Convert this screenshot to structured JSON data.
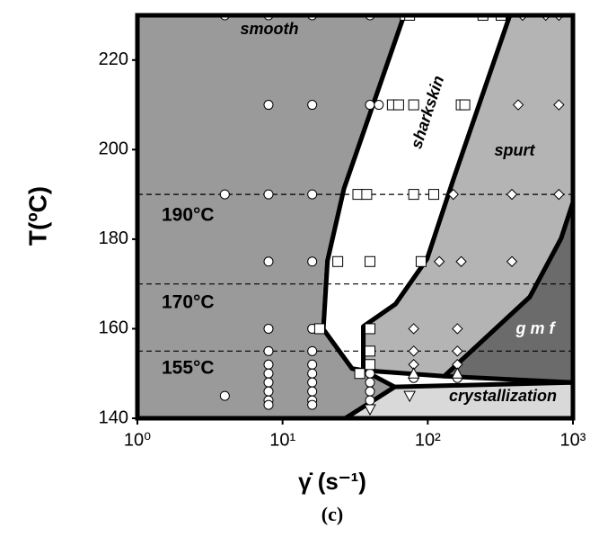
{
  "chart_data": {
    "type": "scatter",
    "x_label": "γ̇ (s⁻¹)",
    "y_label": "T(ºC)",
    "caption": "(c)",
    "xlim": [
      1,
      1000
    ],
    "log_x": true,
    "xticks": [
      {
        "value": 1,
        "label": "10⁰"
      },
      {
        "value": 10,
        "label": "10¹"
      },
      {
        "value": 100,
        "label": "10²"
      },
      {
        "value": 1000,
        "label": "10³"
      }
    ],
    "ylim": [
      140,
      230
    ],
    "yticks": [
      140,
      160,
      180,
      200,
      220
    ],
    "regions": [
      {
        "name": "smooth",
        "color": "#9a9a9a",
        "x": [
          1,
          68.7,
          26.5,
          20.4,
          19.1,
          30.1,
          36,
          59.3,
          27.1,
          1
        ],
        "y": [
          230,
          230,
          191.3,
          175.2,
          159.9,
          151.1,
          150.7,
          147,
          140,
          140
        ]
      },
      {
        "name": "sharkskin",
        "color": "#ffffff",
        "x": [
          68.7,
          368,
          150,
          99,
          60,
          36,
          36,
          30.1,
          19.1,
          20.4,
          26.5
        ],
        "y": [
          230,
          230,
          193.3,
          175.6,
          165.5,
          160.5,
          150.7,
          151.1,
          159.9,
          175.2,
          191.3
        ]
      },
      {
        "name": "spurt",
        "color": "#b4b4b4",
        "x": [
          368,
          1000,
          1000,
          830,
          505,
          130,
          36,
          36,
          60,
          99,
          150
        ],
        "y": [
          230,
          230,
          188.2,
          180.2,
          167.1,
          149.4,
          150.7,
          160.5,
          165.5,
          175.6,
          193.3
        ]
      },
      {
        "name": "g m f",
        "color": "#6b6b6b",
        "x": [
          1000,
          830,
          505,
          130,
          1000
        ],
        "y": [
          188.2,
          180.2,
          167.1,
          149.4,
          148
        ]
      },
      {
        "name": "crystallization",
        "color": "#d9d9d9",
        "x": [
          27.1,
          59.3,
          1000,
          1000
        ],
        "y": [
          140,
          147,
          148,
          140
        ]
      }
    ],
    "reference_lines": [
      {
        "value": 190,
        "label": "190°C"
      },
      {
        "value": 170,
        "label": "170°C"
      },
      {
        "value": 155,
        "label": "155°C"
      }
    ],
    "series": [
      {
        "marker": "circle",
        "color": "#ffffff",
        "x": [
          4,
          8,
          16,
          40,
          8,
          16,
          40,
          46,
          4,
          8,
          16,
          8,
          16,
          8,
          16,
          40,
          8,
          16,
          40,
          4,
          8,
          8,
          8,
          8,
          8,
          8,
          16,
          16,
          16,
          16,
          16,
          16,
          40,
          40,
          40,
          40,
          80,
          160
        ],
        "y": [
          230,
          230,
          230,
          230,
          210,
          210,
          210,
          210,
          190,
          190,
          190,
          175,
          175,
          160,
          160,
          160,
          155,
          155,
          155,
          145,
          152,
          150,
          148,
          146,
          144,
          143,
          152,
          150,
          148,
          146,
          144,
          143,
          150,
          148,
          146,
          144,
          149,
          149
        ]
      },
      {
        "marker": "square",
        "color": "#ffffff",
        "x": [
          70,
          75,
          240,
          320,
          57,
          63,
          80,
          170,
          180,
          33,
          38,
          80,
          110,
          24,
          40,
          90,
          18,
          40,
          40,
          40,
          34
        ],
        "y": [
          230,
          230,
          230,
          230,
          210,
          210,
          210,
          210,
          210,
          190,
          190,
          190,
          190,
          175,
          175,
          175,
          160,
          160,
          155,
          152,
          150
        ]
      },
      {
        "marker": "diamond",
        "color": "#ffffff",
        "x": [
          450,
          650,
          800,
          420,
          800,
          150,
          380,
          800,
          120,
          170,
          380,
          80,
          160,
          80,
          160,
          80,
          160
        ],
        "y": [
          230,
          230,
          230,
          210,
          210,
          190,
          190,
          190,
          175,
          175,
          175,
          160,
          160,
          155,
          155,
          152,
          152
        ]
      },
      {
        "marker": "triangle-up",
        "color": "#ffffff",
        "x": [
          80,
          160
        ],
        "y": [
          150,
          150
        ]
      },
      {
        "marker": "triangle-down",
        "color": "#ffffff",
        "x": [
          75,
          40
        ],
        "y": [
          145,
          142
        ]
      }
    ]
  }
}
